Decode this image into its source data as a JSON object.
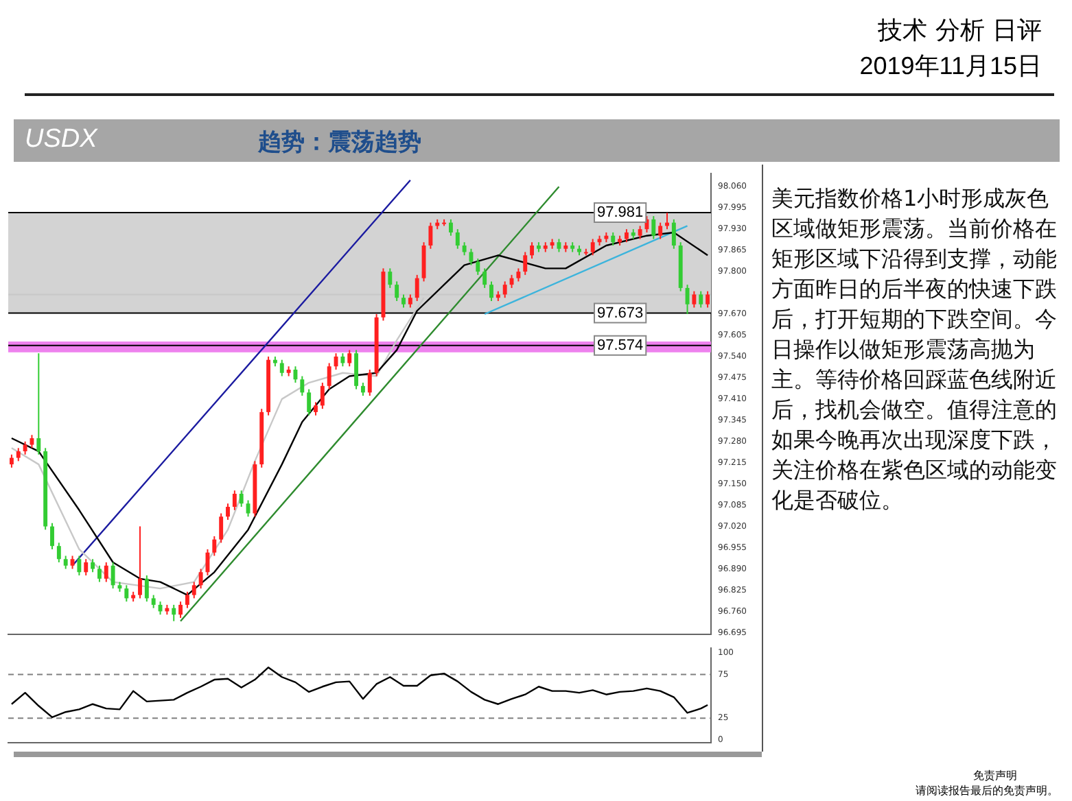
{
  "chart_data": [
    {
      "type": "candlestick",
      "title": "USDX",
      "subtitle": "趋势：震荡趋势",
      "annotations": [
        "技术 分析 日评",
        "2019年11月15日",
        "美元指数价格1小时形成灰色区域做矩形震荡。当前价格在矩形区域下沿得到支撑，动能方面昨日的后半夜的快速下跌后，打开短期的下跌空间。今日操作以做矩形震荡高抛为主。等待价格回踩蓝色线附近后，找机会做空。值得注意的如果今晚再次出现深度下跌，关注价格在紫色区域的动能变化是否破位。",
        "免责声明",
        "请阅读报告最后的免责声明。"
      ],
      "categories": [
        null,
        null,
        null,
        null,
        null,
        null,
        null,
        null,
        null,
        null,
        null,
        null,
        null,
        null,
        null,
        null,
        null,
        null,
        null,
        null,
        null,
        null,
        null,
        null,
        null,
        null,
        null,
        null,
        null,
        null,
        null,
        null,
        null,
        null,
        null,
        null,
        null,
        null,
        null,
        null,
        null,
        null,
        null,
        null,
        null,
        null,
        null,
        null,
        null,
        null,
        null,
        null,
        null,
        null,
        null,
        null,
        null,
        null,
        null,
        null,
        null,
        null,
        null,
        null,
        null,
        null,
        null,
        null,
        null,
        null,
        null,
        null,
        null,
        null,
        null,
        null,
        null,
        null,
        null,
        null,
        null,
        null,
        null,
        null,
        null,
        null,
        null,
        null,
        null,
        null,
        null,
        null,
        null,
        null,
        null,
        null,
        null,
        null,
        null,
        null,
        null,
        null,
        null,
        null
      ],
      "ohlc": [
        [
          97.21,
          97.24,
          97.2,
          97.23
        ],
        [
          97.23,
          97.26,
          97.22,
          97.25
        ],
        [
          97.25,
          97.28,
          97.24,
          97.27
        ],
        [
          97.27,
          97.3,
          97.26,
          97.29
        ],
        [
          97.29,
          97.55,
          97.24,
          97.25
        ],
        [
          97.25,
          97.26,
          97.01,
          97.02
        ],
        [
          97.02,
          97.03,
          96.95,
          96.96
        ],
        [
          96.96,
          96.97,
          96.91,
          96.92
        ],
        [
          96.92,
          96.93,
          96.89,
          96.9
        ],
        [
          96.9,
          96.93,
          96.89,
          96.92
        ],
        [
          96.92,
          96.93,
          96.87,
          96.88
        ],
        [
          96.88,
          96.92,
          96.87,
          96.91
        ],
        [
          96.91,
          96.92,
          96.88,
          96.89
        ],
        [
          96.89,
          96.9,
          96.85,
          96.86
        ],
        [
          96.86,
          96.91,
          96.85,
          96.9
        ],
        [
          96.9,
          96.91,
          96.83,
          96.84
        ],
        [
          96.84,
          96.85,
          96.82,
          96.83
        ],
        [
          96.83,
          96.84,
          96.79,
          96.8
        ],
        [
          96.8,
          96.82,
          96.79,
          96.81
        ],
        [
          96.81,
          97.02,
          96.8,
          96.86
        ],
        [
          96.86,
          96.87,
          96.79,
          96.8
        ],
        [
          96.8,
          96.81,
          96.77,
          96.78
        ],
        [
          96.78,
          96.79,
          96.75,
          96.76
        ],
        [
          96.76,
          96.78,
          96.75,
          96.77
        ],
        [
          96.77,
          96.78,
          96.73,
          96.75
        ],
        [
          96.75,
          96.79,
          96.74,
          96.78
        ],
        [
          96.78,
          96.82,
          96.77,
          96.81
        ],
        [
          96.81,
          96.85,
          96.8,
          96.84
        ],
        [
          96.84,
          96.89,
          96.83,
          96.88
        ],
        [
          96.88,
          96.95,
          96.87,
          96.94
        ],
        [
          96.94,
          96.99,
          96.93,
          96.98
        ],
        [
          96.98,
          97.06,
          96.97,
          97.05
        ],
        [
          97.05,
          97.09,
          97.04,
          97.08
        ],
        [
          97.08,
          97.13,
          97.07,
          97.12
        ],
        [
          97.12,
          97.13,
          97.08,
          97.09
        ],
        [
          97.09,
          97.1,
          97.05,
          97.06
        ],
        [
          97.06,
          97.22,
          97.05,
          97.21
        ],
        [
          97.21,
          97.38,
          97.2,
          97.37
        ],
        [
          97.37,
          97.54,
          97.36,
          97.53
        ],
        [
          97.53,
          97.54,
          97.51,
          97.52
        ],
        [
          97.52,
          97.53,
          97.48,
          97.49
        ],
        [
          97.49,
          97.51,
          97.48,
          97.5
        ],
        [
          97.5,
          97.51,
          97.46,
          97.47
        ],
        [
          97.47,
          97.48,
          97.42,
          97.43
        ],
        [
          97.43,
          97.44,
          97.36,
          97.37
        ],
        [
          97.37,
          97.4,
          97.36,
          97.39
        ],
        [
          97.39,
          97.46,
          97.38,
          97.45
        ],
        [
          97.45,
          97.52,
          97.44,
          97.51
        ],
        [
          97.51,
          97.55,
          97.5,
          97.54
        ],
        [
          97.54,
          97.55,
          97.51,
          97.52
        ],
        [
          97.52,
          97.56,
          97.51,
          97.55
        ],
        [
          97.55,
          97.56,
          97.44,
          97.45
        ],
        [
          97.45,
          97.46,
          97.42,
          97.43
        ],
        [
          97.43,
          97.5,
          97.42,
          97.49
        ],
        [
          97.49,
          97.67,
          97.48,
          97.66
        ],
        [
          97.66,
          97.81,
          97.65,
          97.8
        ],
        [
          97.8,
          97.81,
          97.75,
          97.76
        ],
        [
          97.76,
          97.77,
          97.71,
          97.72
        ],
        [
          97.72,
          97.73,
          97.69,
          97.7
        ],
        [
          97.7,
          97.73,
          97.69,
          97.72
        ],
        [
          97.72,
          97.79,
          97.71,
          97.78
        ],
        [
          97.78,
          97.89,
          97.77,
          97.88
        ],
        [
          97.88,
          97.95,
          97.87,
          97.94
        ],
        [
          97.94,
          97.96,
          97.93,
          97.95
        ],
        [
          97.95,
          97.96,
          97.94,
          97.95
        ],
        [
          97.95,
          97.96,
          97.91,
          97.92
        ],
        [
          97.92,
          97.93,
          97.87,
          97.88
        ],
        [
          97.88,
          97.89,
          97.85,
          97.86
        ],
        [
          97.86,
          97.87,
          97.82,
          97.83
        ],
        [
          97.83,
          97.84,
          97.79,
          97.8
        ],
        [
          97.8,
          97.81,
          97.75,
          97.76
        ],
        [
          97.76,
          97.77,
          97.71,
          97.72
        ],
        [
          97.72,
          97.74,
          97.71,
          97.73
        ],
        [
          97.73,
          97.77,
          97.72,
          97.76
        ],
        [
          97.76,
          97.79,
          97.75,
          97.78
        ],
        [
          97.78,
          97.81,
          97.77,
          97.8
        ],
        [
          97.8,
          97.86,
          97.79,
          97.85
        ],
        [
          97.85,
          97.89,
          97.84,
          97.88
        ],
        [
          97.88,
          97.89,
          97.86,
          97.87
        ],
        [
          97.87,
          97.89,
          97.86,
          97.88
        ],
        [
          97.88,
          97.9,
          97.87,
          97.89
        ],
        [
          97.89,
          97.9,
          97.86,
          97.87
        ],
        [
          97.87,
          97.89,
          97.86,
          97.88
        ],
        [
          97.88,
          97.89,
          97.86,
          97.87
        ],
        [
          97.87,
          97.88,
          97.85,
          97.86
        ],
        [
          97.86,
          97.87,
          97.85,
          97.86
        ],
        [
          97.86,
          97.9,
          97.85,
          97.89
        ],
        [
          97.89,
          97.91,
          97.88,
          97.9
        ],
        [
          97.9,
          97.92,
          97.89,
          97.91
        ],
        [
          97.91,
          97.92,
          97.88,
          97.89
        ],
        [
          97.89,
          97.91,
          97.88,
          97.9
        ],
        [
          97.9,
          97.93,
          97.89,
          97.92
        ],
        [
          97.92,
          97.93,
          97.9,
          97.91
        ],
        [
          97.91,
          97.94,
          97.9,
          97.93
        ],
        [
          97.93,
          97.97,
          97.92,
          97.96
        ],
        [
          97.96,
          97.97,
          97.9,
          97.91
        ],
        [
          97.91,
          97.95,
          97.9,
          97.94
        ],
        [
          97.94,
          97.98,
          97.93,
          97.95
        ],
        [
          97.95,
          97.96,
          97.87,
          97.88
        ],
        [
          97.88,
          97.89,
          97.74,
          97.75
        ],
        [
          97.75,
          97.76,
          97.67,
          97.7
        ],
        [
          97.7,
          97.74,
          97.69,
          97.73
        ],
        [
          97.73,
          97.74,
          97.69,
          97.7
        ],
        [
          97.7,
          97.74,
          97.69,
          97.73
        ]
      ],
      "colors": [
        "#ff2020",
        "#ff2020",
        "#ff2020",
        "#ff2020",
        "#33cc33",
        "#33cc33",
        "#33cc33",
        "#33cc33",
        "#33cc33",
        "#ff2020",
        "#33cc33",
        "#ff2020",
        "#33cc33",
        "#33cc33",
        "#ff2020",
        "#33cc33",
        "#33cc33",
        "#33cc33",
        "#ff2020",
        "#ff2020",
        "#33cc33",
        "#33cc33",
        "#33cc33",
        "#ff2020",
        "#33cc33",
        "#ff2020",
        "#ff2020",
        "#ff2020",
        "#ff2020",
        "#ff2020",
        "#ff2020",
        "#ff2020",
        "#ff2020",
        "#ff2020",
        "#33cc33",
        "#33cc33",
        "#ff2020",
        "#ff2020",
        "#ff2020",
        "#33cc33",
        "#33cc33",
        "#ff2020",
        "#33cc33",
        "#33cc33",
        "#33cc33",
        "#ff2020",
        "#ff2020",
        "#ff2020",
        "#ff2020",
        "#33cc33",
        "#ff2020",
        "#33cc33",
        "#33cc33",
        "#ff2020",
        "#ff2020",
        "#ff2020",
        "#33cc33",
        "#33cc33",
        "#33cc33",
        "#ff2020",
        "#ff2020",
        "#ff2020",
        "#ff2020",
        "#ff2020",
        "#ff2020",
        "#33cc33",
        "#33cc33",
        "#33cc33",
        "#33cc33",
        "#33cc33",
        "#33cc33",
        "#33cc33",
        "#ff2020",
        "#ff2020",
        "#ff2020",
        "#ff2020",
        "#ff2020",
        "#ff2020",
        "#33cc33",
        "#ff2020",
        "#ff2020",
        "#33cc33",
        "#ff2020",
        "#33cc33",
        "#33cc33",
        "#ff2020",
        "#ff2020",
        "#ff2020",
        "#ff2020",
        "#33cc33",
        "#ff2020",
        "#ff2020",
        "#33cc33",
        "#ff2020",
        "#ff2020",
        "#33cc33",
        "#ff2020",
        "#ff2020",
        "#33cc33",
        "#33cc33",
        "#33cc33",
        "#ff2020",
        "#33cc33",
        "#ff2020"
      ],
      "series": [
        {
          "type": "line",
          "color": "#000000",
          "values": [
            97.29,
            null,
            null,
            null,
            97.25,
            null,
            null,
            null,
            null,
            null,
            97.07,
            null,
            null,
            null,
            null,
            96.91,
            null,
            null,
            null,
            96.86,
            null,
            null,
            96.85,
            null,
            null,
            null,
            96.81,
            null,
            null,
            null,
            96.88,
            null,
            null,
            null,
            null,
            97.01,
            null,
            null,
            null,
            null,
            97.21,
            null,
            null,
            97.34,
            null,
            null,
            null,
            97.44,
            null,
            null,
            97.48,
            null,
            null,
            null,
            97.49,
            null,
            null,
            97.56,
            null,
            null,
            97.68,
            null,
            null,
            null,
            97.76,
            null,
            null,
            97.82,
            null,
            null,
            null,
            null,
            97.85,
            null,
            null,
            null,
            null,
            null,
            null,
            97.81,
            null,
            null,
            97.81,
            null,
            null,
            null,
            null,
            null,
            97.88,
            null,
            null,
            null,
            null,
            null,
            97.91,
            null,
            null,
            null,
            97.92,
            null,
            null,
            null,
            null,
            97.85
          ]
        },
        {
          "type": "line",
          "color": "#c8c8c8",
          "values": [
            97.26,
            null,
            null,
            null,
            97.21,
            null,
            null,
            null,
            null,
            null,
            96.95,
            null,
            null,
            null,
            null,
            96.85,
            null,
            null,
            null,
            null,
            null,
            null,
            96.83,
            null,
            null,
            null,
            null,
            96.85,
            null,
            null,
            null,
            null,
            97.01,
            null,
            null,
            null,
            97.22,
            null,
            null,
            null,
            97.41,
            null,
            null,
            null,
            97.46,
            null,
            null,
            null,
            null,
            97.49,
            null,
            null,
            null,
            null,
            97.48,
            null,
            null,
            97.59,
            null,
            null,
            null,
            97.72,
            null,
            null,
            null,
            null,
            null,
            null,
            null,
            null,
            null,
            null,
            null,
            null,
            null,
            null,
            null,
            null,
            null,
            null,
            null,
            null,
            null,
            null,
            null,
            null,
            null,
            null,
            null,
            null,
            null,
            null,
            null,
            null,
            null,
            null,
            null,
            null,
            null,
            null,
            null,
            null,
            null,
            null
          ]
        },
        {
          "type": "line",
          "color": "#1a1aa0",
          "values": [
            null,
            null,
            null,
            null,
            null,
            null,
            null,
            null,
            null,
            96.9,
            null,
            null,
            null,
            null,
            null,
            null,
            null,
            null,
            null,
            null,
            null,
            null,
            null,
            null,
            null,
            null,
            null,
            null,
            null,
            null,
            null,
            null,
            null,
            null,
            null,
            null,
            null,
            null,
            null,
            null,
            null,
            null,
            null,
            null,
            null,
            null,
            null,
            null,
            null,
            null,
            null,
            null,
            null,
            null,
            null,
            null,
            null,
            null,
            null,
            98.08,
            null,
            null,
            null,
            null,
            null,
            null,
            null,
            null,
            null,
            null,
            null,
            null,
            null,
            null,
            null,
            null,
            null,
            null,
            null,
            null,
            null,
            null,
            null,
            null,
            null,
            null,
            null,
            null,
            null,
            null,
            null,
            null,
            null,
            null,
            null,
            null,
            null,
            null,
            null,
            null,
            null,
            null,
            null,
            null
          ]
        },
        {
          "type": "line",
          "color": "#2e8b2e",
          "values": [
            null,
            null,
            null,
            null,
            null,
            null,
            null,
            null,
            null,
            null,
            null,
            null,
            null,
            null,
            null,
            null,
            null,
            null,
            null,
            null,
            null,
            null,
            null,
            null,
            null,
            96.73,
            null,
            null,
            null,
            null,
            null,
            null,
            null,
            null,
            null,
            null,
            null,
            null,
            null,
            null,
            null,
            null,
            null,
            null,
            null,
            null,
            null,
            null,
            null,
            null,
            null,
            null,
            null,
            null,
            null,
            null,
            null,
            null,
            null,
            null,
            null,
            null,
            null,
            null,
            null,
            null,
            null,
            null,
            null,
            null,
            null,
            null,
            null,
            null,
            null,
            null,
            null,
            null,
            null,
            null,
            null,
            98.06,
            null,
            null,
            null,
            null,
            null,
            null,
            null,
            null,
            null,
            null,
            null,
            null,
            null,
            null,
            null,
            null,
            null,
            null,
            null,
            null,
            null,
            null
          ]
        },
        {
          "type": "line",
          "color": "#3cb4dc",
          "values": [
            null,
            null,
            null,
            null,
            null,
            null,
            null,
            null,
            null,
            null,
            null,
            null,
            null,
            null,
            null,
            null,
            null,
            null,
            null,
            null,
            null,
            null,
            null,
            null,
            null,
            null,
            null,
            null,
            null,
            null,
            null,
            null,
            null,
            null,
            null,
            null,
            null,
            null,
            null,
            null,
            null,
            null,
            null,
            null,
            null,
            null,
            null,
            null,
            null,
            null,
            null,
            null,
            null,
            null,
            null,
            null,
            null,
            null,
            null,
            null,
            null,
            null,
            null,
            null,
            null,
            null,
            null,
            null,
            null,
            null,
            97.67,
            null,
            null,
            null,
            null,
            null,
            null,
            null,
            null,
            null,
            null,
            null,
            null,
            null,
            null,
            null,
            null,
            null,
            null,
            null,
            null,
            null,
            null,
            null,
            null,
            null,
            null,
            null,
            null,
            null,
            97.94,
            null,
            null,
            null
          ]
        }
      ],
      "ylim": [
        96.69,
        98.1
      ],
      "yticks": [
        {
          "value": 98.06,
          "label": "98.060"
        },
        97.995,
        {
          "value": 97.93,
          "label": "97.930"
        },
        97.865,
        {
          "value": 97.8,
          "label": "97.800"
        },
        {
          "value": 97.67,
          "label": "97.670"
        },
        97.605,
        {
          "value": 97.54,
          "label": "97.540"
        },
        97.475,
        {
          "value": 97.41,
          "label": "97.410"
        },
        97.345,
        {
          "value": 97.28,
          "label": "97.280"
        },
        97.215,
        {
          "value": 97.15,
          "label": "97.150"
        },
        97.085,
        {
          "value": 97.02,
          "label": "97.020"
        },
        96.955,
        {
          "value": 96.89,
          "label": "96.890"
        },
        96.825,
        {
          "value": 96.76,
          "label": "96.760"
        },
        96.695
      ],
      "bands": [
        {
          "axis": "y",
          "from": 97.673,
          "to": 97.981,
          "color": "#d3d3d3"
        },
        {
          "axis": "y",
          "from": 97.553,
          "to": 97.586,
          "color": "#ee82ee"
        }
      ],
      "ref_lines": [
        {
          "axis": "y",
          "value": 97.73,
          "color": "#c8c8c8"
        },
        {
          "axis": "y",
          "value": 97.981,
          "label": "97.981",
          "color": "#000000"
        },
        {
          "axis": "y",
          "value": 97.673,
          "label": "97.673",
          "color": "#000000"
        },
        {
          "axis": "y",
          "value": 97.574,
          "label": "97.574",
          "color": "#000000"
        }
      ],
      "tick_labels": "y",
      "legend": false,
      "grid": false
    },
    {
      "type": "line",
      "categories": [
        null,
        null,
        null,
        null,
        null,
        null,
        null,
        null,
        null,
        null,
        null,
        null,
        null,
        null,
        null,
        null,
        null,
        null,
        null,
        null,
        null,
        null,
        null,
        null,
        null,
        null,
        null,
        null,
        null,
        null,
        null,
        null,
        null,
        null,
        null,
        null,
        null,
        null,
        null,
        null,
        null,
        null,
        null,
        null,
        null,
        null,
        null,
        null,
        null,
        null,
        null,
        null,
        null,
        null,
        null,
        null,
        null,
        null,
        null,
        null,
        null,
        null,
        null,
        null,
        null,
        null,
        null,
        null,
        null,
        null,
        null,
        null,
        null,
        null,
        null,
        null,
        null,
        null,
        null,
        null,
        null,
        null,
        null,
        null,
        null,
        null,
        null,
        null,
        null,
        null,
        null,
        null,
        null,
        null,
        null,
        null,
        null,
        null,
        null,
        null,
        null,
        null,
        null,
        null
      ],
      "series": [
        {
          "color": "#000000",
          "values": [
            41,
            null,
            54,
            null,
            39,
            null,
            26,
            null,
            32,
            null,
            35,
            null,
            41,
            null,
            36,
            null,
            35,
            null,
            56,
            null,
            44,
            null,
            45,
            null,
            46,
            null,
            54,
            null,
            61,
            null,
            69,
            null,
            70,
            null,
            60,
            null,
            69,
            null,
            83,
            null,
            72,
            null,
            66,
            null,
            55,
            null,
            61,
            null,
            66,
            null,
            67,
            null,
            47,
            null,
            64,
            null,
            72,
            null,
            62,
            null,
            62,
            null,
            74,
            null,
            76,
            null,
            67,
            null,
            55,
            null,
            46,
            null,
            41,
            null,
            47,
            null,
            52,
            null,
            61,
            null,
            56,
            null,
            56,
            null,
            54,
            null,
            57,
            null,
            52,
            null,
            55,
            null,
            56,
            null,
            59,
            null,
            56,
            null,
            49,
            null,
            31,
            null,
            36,
            40
          ]
        }
      ],
      "ylim": [
        -3,
        105
      ],
      "yticks": [
        0,
        25,
        75,
        100
      ],
      "ref_lines": [
        {
          "axis": "y",
          "value": 25,
          "color": "#808080",
          "line_style": "dashed"
        },
        {
          "axis": "y",
          "value": 75,
          "color": "#808080",
          "line_style": "dashed"
        }
      ],
      "tick_labels": "y",
      "legend": false,
      "grid": false
    }
  ]
}
